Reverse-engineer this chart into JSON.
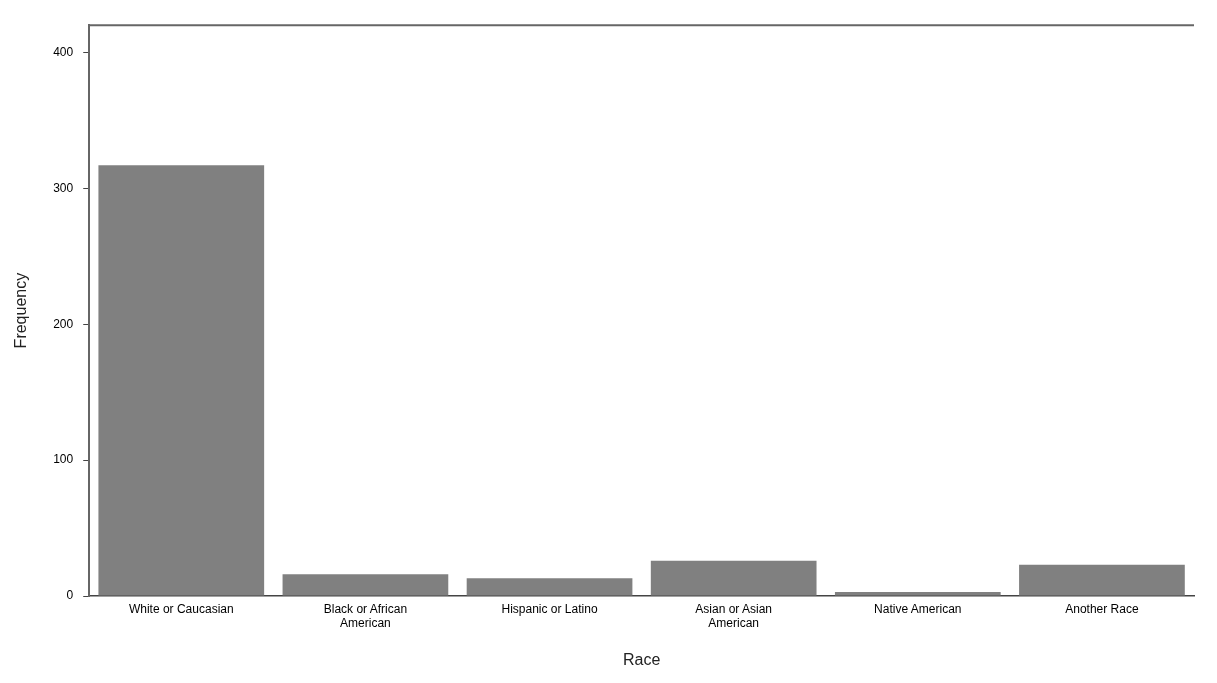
{
  "chart_data": {
    "type": "bar",
    "xlabel": "Race",
    "ylabel": "Frequency",
    "categories": [
      "White or Caucasian",
      "Black or African American",
      "Hispanic or Latino",
      "Asian or Asian American",
      "Native American",
      "Another Race"
    ],
    "values": [
      317,
      16,
      13,
      26,
      3,
      23
    ],
    "color": "#808080",
    "ylim": [
      0,
      420
    ],
    "yticks": [
      0,
      100,
      200,
      300,
      400
    ],
    "grid": false,
    "legend": false
  }
}
